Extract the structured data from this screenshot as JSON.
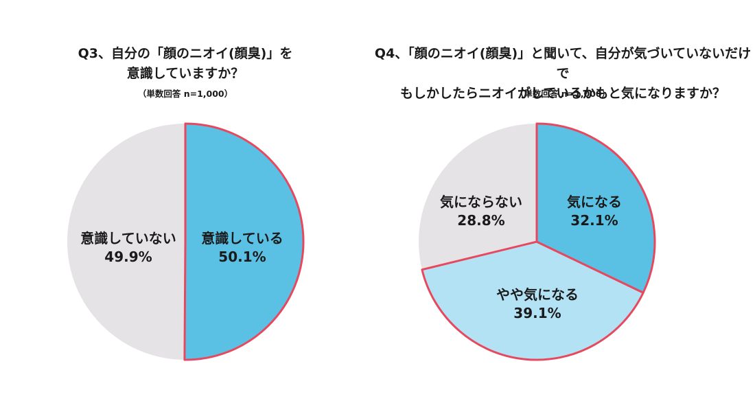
{
  "chart_data": [
    {
      "type": "pie",
      "title_lines": [
        "Q3、自分の「顔のニオイ(顔臭)」を",
        "意識していますか？"
      ],
      "subtitle": "（単数回答 n=1,000）",
      "slices": [
        {
          "label": "意識している",
          "value": 50.1,
          "value_text": "50.1%",
          "color": "#5bc1e4"
        },
        {
          "label": "意識していない",
          "value": 49.9,
          "value_text": "49.9%",
          "color": "#e5e3e6"
        }
      ],
      "highlight_color": "#e8485e"
    },
    {
      "type": "pie",
      "title_lines": [
        "Q4、「顔のニオイ(顔臭)」と聞いて、自分が気づいていないだけで",
        "もしかしたらニオイがしているかもと気になりますか？"
      ],
      "subtitle": "（単数回答 n=1,000）",
      "slices": [
        {
          "label": "気になる",
          "value": 32.1,
          "value_text": "32.1%",
          "color": "#5bc1e4"
        },
        {
          "label": "やや気になる",
          "value": 39.1,
          "value_text": "39.1%",
          "color": "#b3e2f4"
        },
        {
          "label": "気にならない",
          "value": 28.8,
          "value_text": "28.8%",
          "color": "#e5e3e6"
        }
      ],
      "highlight_color": "#e8485e"
    }
  ]
}
